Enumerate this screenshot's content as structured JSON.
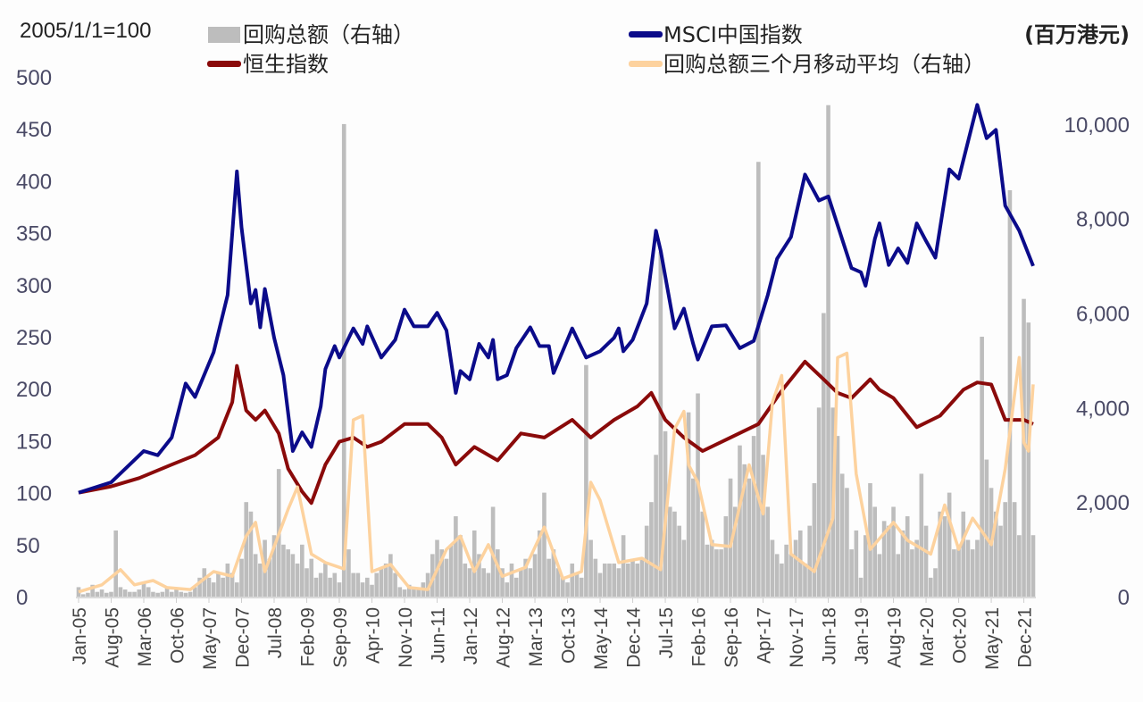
{
  "chart_data": {
    "type": "bar+line",
    "left_axis_label": "2005/1/1=100",
    "right_axis_label": "(百万港元)",
    "left_ylim": [
      0,
      500
    ],
    "left_ticks": [
      0,
      50,
      100,
      150,
      200,
      250,
      300,
      350,
      400,
      450,
      500
    ],
    "right_ylim": [
      0,
      11000
    ],
    "right_ticks": [
      "0",
      "2,000",
      "4,000",
      "6,000",
      "8,000",
      "10,000"
    ],
    "right_tick_values": [
      0,
      2000,
      4000,
      6000,
      8000,
      10000
    ],
    "x_start": "2005-01",
    "x_end": "2022-02",
    "x_tick_labels": [
      "Jan-05",
      "Aug-05",
      "Mar-06",
      "Oct-06",
      "May-07",
      "Dec-07",
      "Jul-08",
      "Feb-09",
      "Sep-09",
      "Apr-10",
      "Nov-10",
      "Jun-11",
      "Jan-12",
      "Aug-12",
      "Mar-13",
      "Oct-13",
      "May-14",
      "Dec-14",
      "Jul-15",
      "Feb-16",
      "Sep-16",
      "Apr-17",
      "Nov-17",
      "Jun-18",
      "Jan-19",
      "Aug-19",
      "Mar-20",
      "Oct-20",
      "May-21",
      "Dec-21"
    ],
    "grid": false,
    "legend_position": "top",
    "colors": {
      "bars": "#bdbdbd",
      "msci": "#0b0b8a",
      "hsi": "#8a0a0a",
      "ma": "#fdd29e"
    },
    "bars": {
      "name": "回购总额（右轴）",
      "axis": "right",
      "monthly_values": [
        200,
        50,
        80,
        250,
        100,
        150,
        80,
        100,
        1400,
        200,
        150,
        100,
        100,
        150,
        300,
        200,
        100,
        80,
        100,
        200,
        100,
        150,
        100,
        80,
        100,
        200,
        400,
        600,
        400,
        300,
        500,
        400,
        700,
        500,
        300,
        800,
        2000,
        1800,
        900,
        700,
        1200,
        800,
        1300,
        2700,
        1100,
        1000,
        900,
        700,
        1100,
        600,
        800,
        400,
        500,
        700,
        400,
        500,
        300,
        10000,
        1000,
        500,
        500,
        300,
        400,
        250,
        500,
        600,
        700,
        900,
        500,
        200,
        150,
        250,
        200,
        150,
        300,
        500,
        900,
        1200,
        1000,
        800,
        1100,
        1700,
        1300,
        700,
        600,
        1400,
        900,
        600,
        500,
        1900,
        1000,
        600,
        300,
        700,
        400,
        600,
        800,
        600,
        900,
        1400,
        2200,
        800,
        1000,
        600,
        400,
        300,
        700,
        500,
        400,
        4900,
        1200,
        800,
        500,
        700,
        700,
        700,
        600,
        1300,
        700,
        800,
        700,
        800,
        1500,
        2000,
        3000,
        7300,
        3500,
        1900,
        1800,
        1500,
        1200,
        3900,
        2500,
        4300,
        1800,
        1100,
        1200,
        1000,
        1000,
        1700,
        2500,
        1900,
        3200,
        2800,
        2500,
        3400,
        9200,
        3000,
        1900,
        1200,
        900,
        700,
        1100,
        900,
        1200,
        1400,
        700,
        1500,
        2400,
        4000,
        6000,
        10400,
        4000,
        3400,
        2600,
        2300,
        1000,
        1400,
        400,
        1300,
        2400,
        1900,
        900,
        1600,
        1500,
        1900,
        900,
        1400,
        1700,
        1000,
        1200,
        2600,
        1500,
        400,
        600,
        1800,
        1700,
        2200,
        1000,
        1100,
        1800,
        1200,
        1000,
        1200,
        5500,
        2900,
        2300,
        1800,
        1500,
        2000,
        8600,
        2000,
        1300,
        6300,
        5800,
        1300
      ]
    },
    "series": [
      {
        "name": "MSCI中国指数",
        "axis": "left",
        "points": [
          [
            "2005-01",
            100
          ],
          [
            "2005-08",
            110
          ],
          [
            "2006-03",
            140
          ],
          [
            "2006-06",
            136
          ],
          [
            "2006-09",
            153
          ],
          [
            "2006-12",
            205
          ],
          [
            "2007-02",
            192
          ],
          [
            "2007-06",
            235
          ],
          [
            "2007-09",
            290
          ],
          [
            "2007-11",
            409
          ],
          [
            "2007-12",
            355
          ],
          [
            "2008-02",
            282
          ],
          [
            "2008-03",
            295
          ],
          [
            "2008-04",
            259
          ],
          [
            "2008-05",
            296
          ],
          [
            "2008-07",
            249
          ],
          [
            "2008-09",
            213
          ],
          [
            "2008-11",
            140
          ],
          [
            "2009-01",
            158
          ],
          [
            "2009-03",
            144
          ],
          [
            "2009-05",
            183
          ],
          [
            "2009-06",
            219
          ],
          [
            "2009-08",
            241
          ],
          [
            "2009-09",
            230
          ],
          [
            "2009-12",
            258
          ],
          [
            "2010-02",
            243
          ],
          [
            "2010-03",
            260
          ],
          [
            "2010-06",
            230
          ],
          [
            "2010-09",
            247
          ],
          [
            "2010-11",
            276
          ],
          [
            "2011-01",
            260
          ],
          [
            "2011-04",
            260
          ],
          [
            "2011-06",
            273
          ],
          [
            "2011-08",
            256
          ],
          [
            "2011-10",
            196
          ],
          [
            "2011-11",
            217
          ],
          [
            "2012-01",
            209
          ],
          [
            "2012-03",
            243
          ],
          [
            "2012-05",
            230
          ],
          [
            "2012-06",
            247
          ],
          [
            "2012-07",
            209
          ],
          [
            "2012-09",
            213
          ],
          [
            "2012-11",
            239
          ],
          [
            "2013-02",
            259
          ],
          [
            "2013-04",
            241
          ],
          [
            "2013-06",
            241
          ],
          [
            "2013-07",
            215
          ],
          [
            "2013-11",
            258
          ],
          [
            "2014-02",
            230
          ],
          [
            "2014-05",
            236
          ],
          [
            "2014-08",
            249
          ],
          [
            "2014-09",
            258
          ],
          [
            "2014-10",
            236
          ],
          [
            "2014-12",
            247
          ],
          [
            "2015-03",
            282
          ],
          [
            "2015-05",
            352
          ],
          [
            "2015-06",
            333
          ],
          [
            "2015-09",
            258
          ],
          [
            "2015-11",
            277
          ],
          [
            "2016-01",
            243
          ],
          [
            "2016-02",
            228
          ],
          [
            "2016-05",
            260
          ],
          [
            "2016-08",
            261
          ],
          [
            "2016-11",
            239
          ],
          [
            "2017-02",
            246
          ],
          [
            "2017-05",
            290
          ],
          [
            "2017-07",
            325
          ],
          [
            "2017-10",
            346
          ],
          [
            "2018-01",
            406
          ],
          [
            "2018-04",
            381
          ],
          [
            "2018-06",
            385
          ],
          [
            "2018-11",
            316
          ],
          [
            "2019-01",
            312
          ],
          [
            "2019-02",
            299
          ],
          [
            "2019-04",
            344
          ],
          [
            "2019-05",
            359
          ],
          [
            "2019-07",
            319
          ],
          [
            "2019-09",
            335
          ],
          [
            "2019-11",
            321
          ],
          [
            "2020-01",
            359
          ],
          [
            "2020-03",
            342
          ],
          [
            "2020-05",
            326
          ],
          [
            "2020-08",
            411
          ],
          [
            "2020-10",
            402
          ],
          [
            "2021-02",
            473
          ],
          [
            "2021-04",
            441
          ],
          [
            "2021-06",
            449
          ],
          [
            "2021-08",
            376
          ],
          [
            "2021-11",
            352
          ],
          [
            "2022-02",
            318
          ]
        ]
      },
      {
        "name": "恒生指数",
        "axis": "left",
        "points": [
          [
            "2005-01",
            100
          ],
          [
            "2005-08",
            106
          ],
          [
            "2006-02",
            114
          ],
          [
            "2006-09",
            127
          ],
          [
            "2007-02",
            136
          ],
          [
            "2007-07",
            153
          ],
          [
            "2007-10",
            187
          ],
          [
            "2007-11",
            222
          ],
          [
            "2008-01",
            179
          ],
          [
            "2008-03",
            170
          ],
          [
            "2008-05",
            179
          ],
          [
            "2008-08",
            157
          ],
          [
            "2008-10",
            123
          ],
          [
            "2009-01",
            101
          ],
          [
            "2009-03",
            90
          ],
          [
            "2009-06",
            127
          ],
          [
            "2009-09",
            149
          ],
          [
            "2009-12",
            153
          ],
          [
            "2010-03",
            144
          ],
          [
            "2010-06",
            149
          ],
          [
            "2010-11",
            166
          ],
          [
            "2011-04",
            166
          ],
          [
            "2011-07",
            153
          ],
          [
            "2011-10",
            127
          ],
          [
            "2012-02",
            144
          ],
          [
            "2012-07",
            131
          ],
          [
            "2012-12",
            157
          ],
          [
            "2013-05",
            153
          ],
          [
            "2013-11",
            170
          ],
          [
            "2014-03",
            153
          ],
          [
            "2014-08",
            170
          ],
          [
            "2015-01",
            183
          ],
          [
            "2015-04",
            196
          ],
          [
            "2015-07",
            170
          ],
          [
            "2015-11",
            153
          ],
          [
            "2016-03",
            140
          ],
          [
            "2016-09",
            153
          ],
          [
            "2017-03",
            166
          ],
          [
            "2017-08",
            198
          ],
          [
            "2018-01",
            226
          ],
          [
            "2018-05",
            209
          ],
          [
            "2018-08",
            196
          ],
          [
            "2018-11",
            191
          ],
          [
            "2019-03",
            209
          ],
          [
            "2019-05",
            199
          ],
          [
            "2019-08",
            191
          ],
          [
            "2020-01",
            163
          ],
          [
            "2020-06",
            174
          ],
          [
            "2020-11",
            199
          ],
          [
            "2021-02",
            206
          ],
          [
            "2021-05",
            204
          ],
          [
            "2021-08",
            170
          ],
          [
            "2021-12",
            170
          ],
          [
            "2022-02",
            166
          ]
        ]
      },
      {
        "name": "回购总额三个月移动平均（右轴）",
        "axis": "right",
        "points": [
          [
            "2005-01",
            100
          ],
          [
            "2005-06",
            250
          ],
          [
            "2005-10",
            570
          ],
          [
            "2006-01",
            250
          ],
          [
            "2006-05",
            340
          ],
          [
            "2006-08",
            190
          ],
          [
            "2007-01",
            150
          ],
          [
            "2007-06",
            530
          ],
          [
            "2007-10",
            430
          ],
          [
            "2008-01",
            1280
          ],
          [
            "2008-03",
            1570
          ],
          [
            "2008-05",
            530
          ],
          [
            "2008-10",
            1850
          ],
          [
            "2008-12",
            2320
          ],
          [
            "2009-03",
            900
          ],
          [
            "2009-06",
            720
          ],
          [
            "2009-10",
            585
          ],
          [
            "2009-12",
            3740
          ],
          [
            "2010-02",
            3830
          ],
          [
            "2010-04",
            530
          ],
          [
            "2010-08",
            680
          ],
          [
            "2010-12",
            190
          ],
          [
            "2011-04",
            150
          ],
          [
            "2011-08",
            1000
          ],
          [
            "2011-11",
            1280
          ],
          [
            "2012-02",
            530
          ],
          [
            "2012-05",
            1100
          ],
          [
            "2012-08",
            430
          ],
          [
            "2013-01",
            620
          ],
          [
            "2013-05",
            1470
          ],
          [
            "2013-09",
            380
          ],
          [
            "2014-01",
            530
          ],
          [
            "2014-03",
            2420
          ],
          [
            "2014-05",
            2040
          ],
          [
            "2014-09",
            720
          ],
          [
            "2015-02",
            810
          ],
          [
            "2015-06",
            570
          ],
          [
            "2015-09",
            3550
          ],
          [
            "2015-11",
            3920
          ],
          [
            "2015-12",
            2790
          ],
          [
            "2016-02",
            2420
          ],
          [
            "2016-05",
            1100
          ],
          [
            "2016-09",
            1060
          ],
          [
            "2017-01",
            2790
          ],
          [
            "2017-04",
            1750
          ],
          [
            "2017-06",
            4110
          ],
          [
            "2017-08",
            4680
          ],
          [
            "2017-10",
            900
          ],
          [
            "2018-03",
            530
          ],
          [
            "2018-07",
            1660
          ],
          [
            "2018-08",
            5060
          ],
          [
            "2018-10",
            5150
          ],
          [
            "2018-12",
            2600
          ],
          [
            "2019-03",
            1000
          ],
          [
            "2019-08",
            1570
          ],
          [
            "2019-11",
            1190
          ],
          [
            "2020-04",
            900
          ],
          [
            "2020-07",
            1940
          ],
          [
            "2020-10",
            1000
          ],
          [
            "2021-01",
            1660
          ],
          [
            "2021-05",
            1100
          ],
          [
            "2021-08",
            2700
          ],
          [
            "2021-11",
            5060
          ],
          [
            "2021-12",
            3260
          ],
          [
            "2022-01",
            3080
          ],
          [
            "2022-02",
            4490
          ]
        ]
      }
    ]
  }
}
